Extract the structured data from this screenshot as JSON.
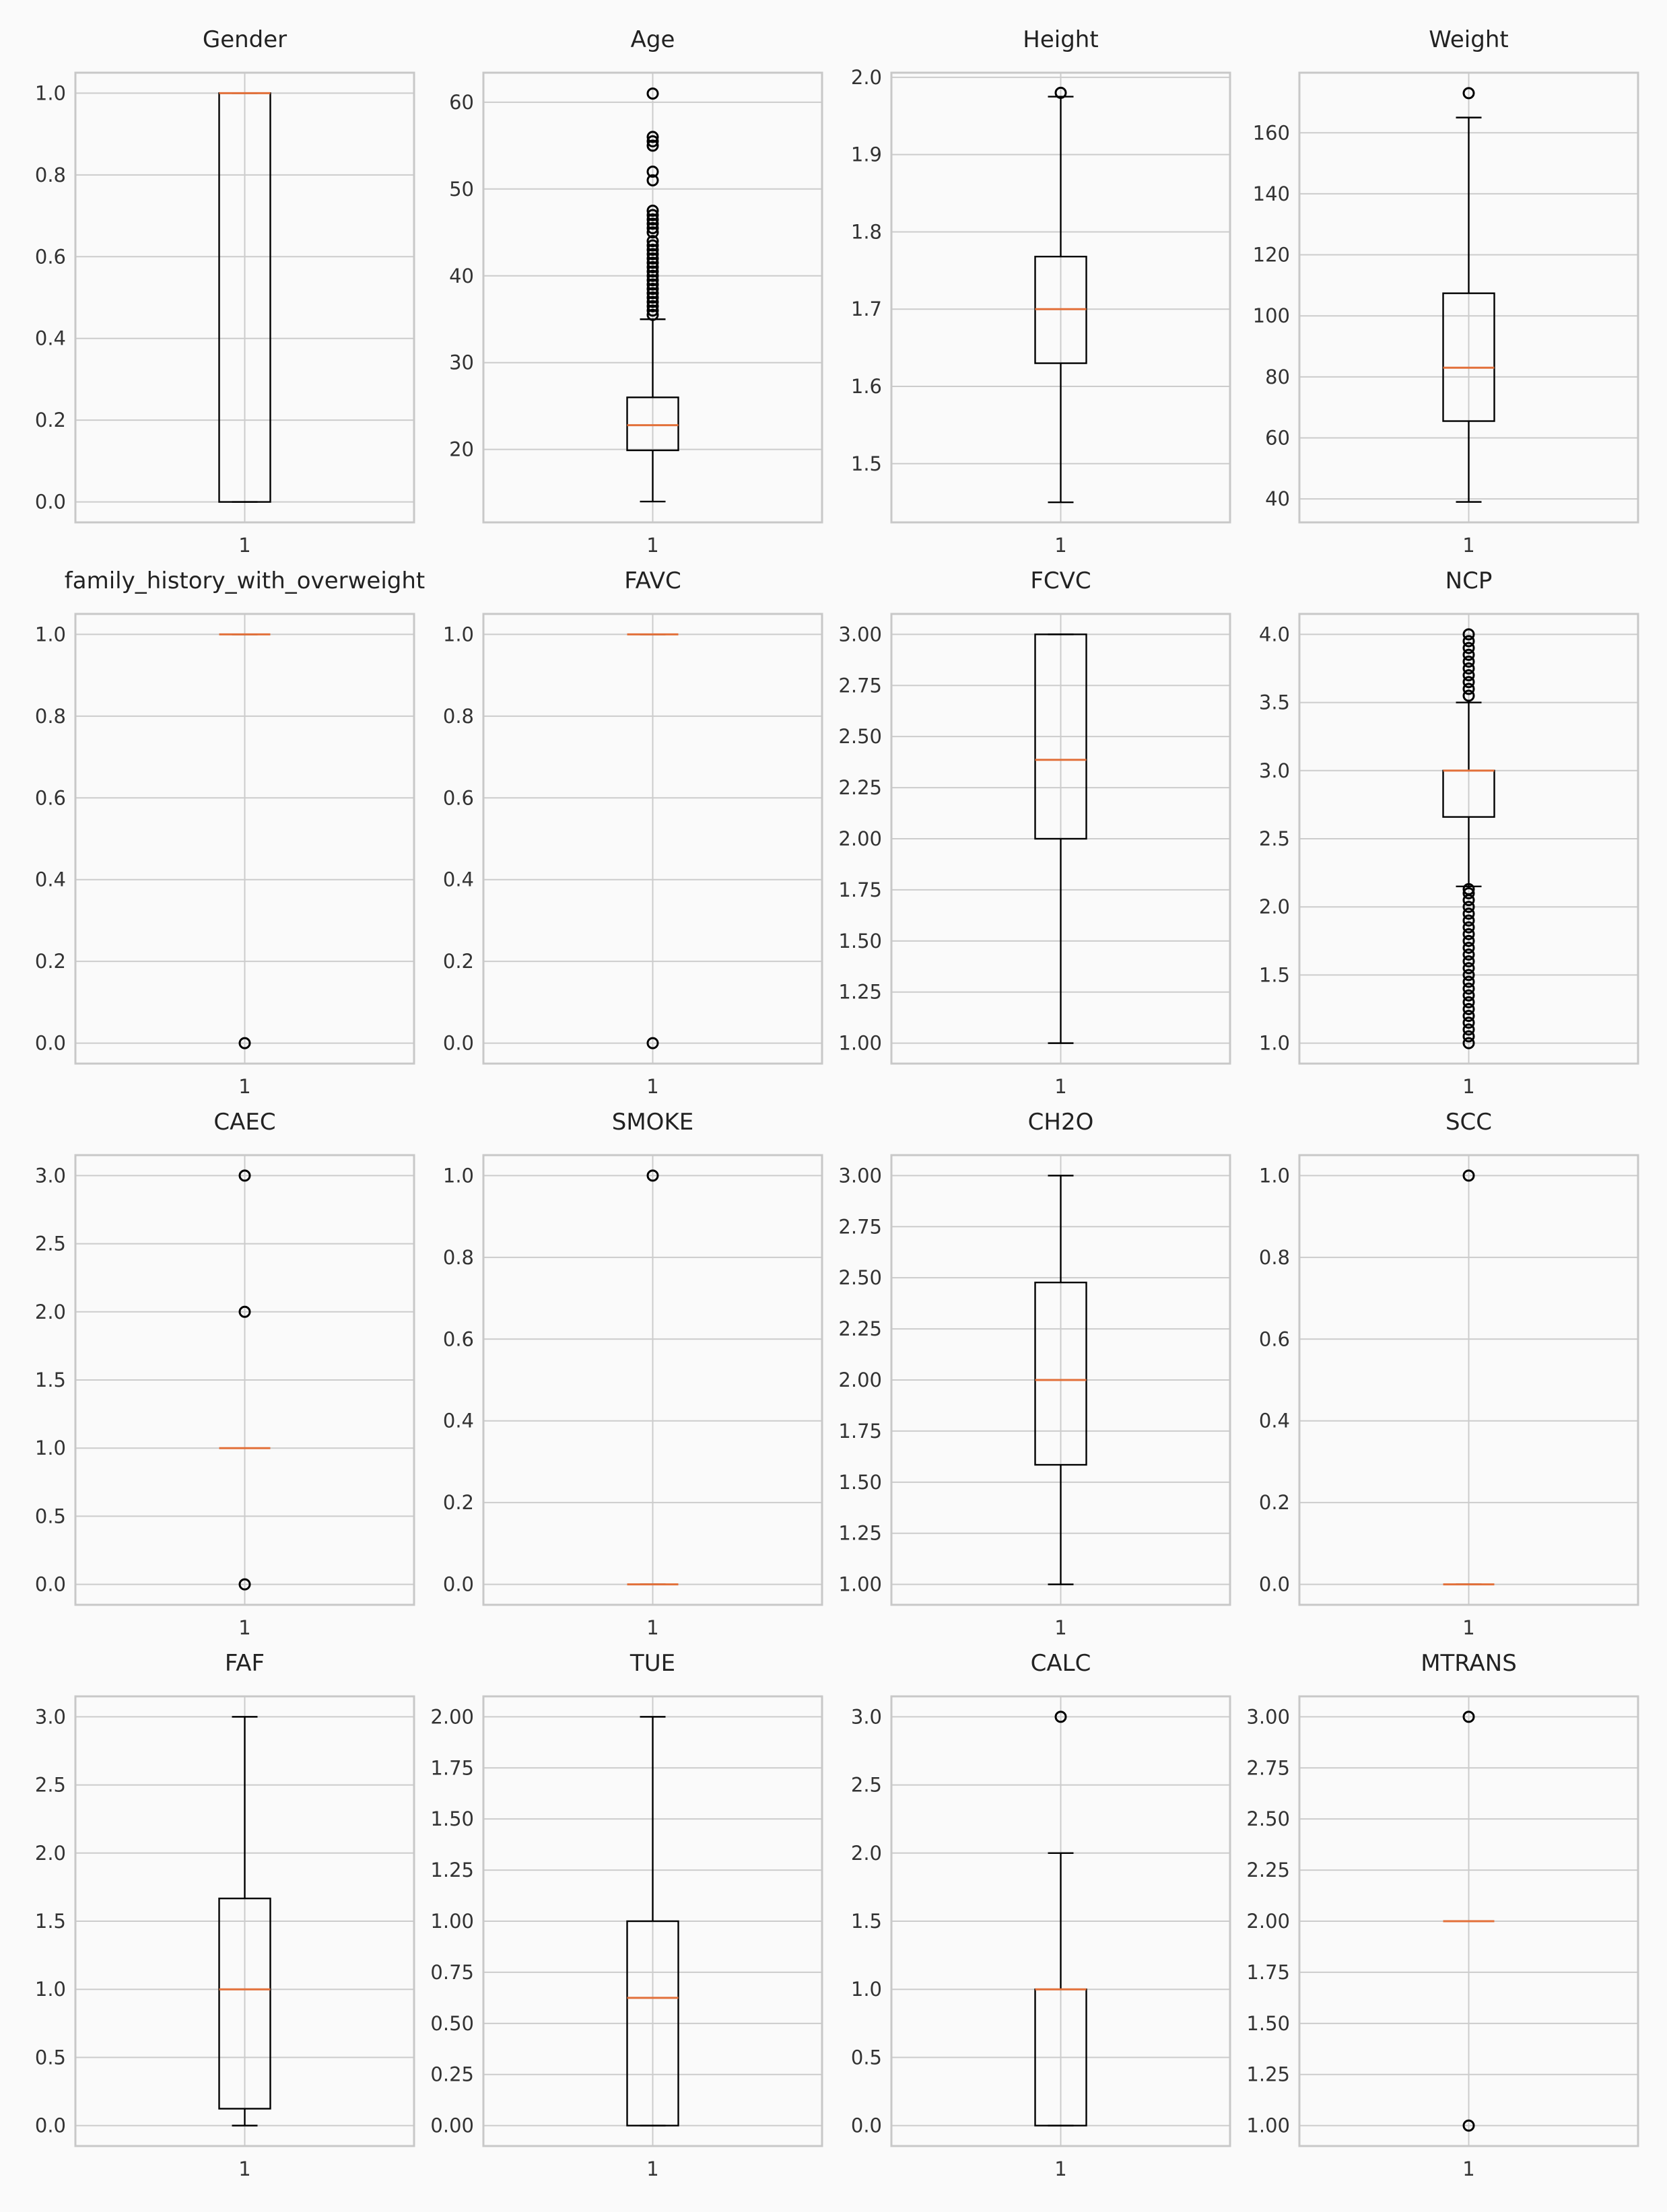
{
  "chart_data": [
    {
      "type": "box",
      "title": "Gender",
      "category": "1",
      "ylim": [
        -0.05,
        1.05
      ],
      "yticks": [
        0.0,
        0.2,
        0.4,
        0.6,
        0.8,
        1.0
      ],
      "tick_labels": [
        "0.0",
        "0.2",
        "0.4",
        "0.6",
        "0.8",
        "1.0"
      ],
      "whislo": 0,
      "q1": 0,
      "med": 1,
      "q3": 1,
      "whishi": 1,
      "fliers": []
    },
    {
      "type": "box",
      "title": "Age",
      "category": "1",
      "ylim": [
        11.6,
        63.4
      ],
      "yticks": [
        20,
        30,
        40,
        50,
        60
      ],
      "tick_labels": [
        "20",
        "30",
        "40",
        "50",
        "60"
      ],
      "whislo": 14,
      "q1": 19.9,
      "med": 22.8,
      "q3": 26,
      "whishi": 35,
      "fliers": [
        35.5,
        36,
        36.5,
        37,
        37.5,
        38,
        38.5,
        39,
        39.5,
        40,
        40.5,
        41,
        41.5,
        42,
        42.5,
        43,
        43.5,
        44,
        45,
        45.5,
        46,
        46.5,
        47,
        47.5,
        51,
        52,
        55,
        55.5,
        56,
        61
      ]
    },
    {
      "type": "box",
      "title": "Height",
      "category": "1",
      "ylim": [
        1.424,
        2.006
      ],
      "yticks": [
        1.5,
        1.6,
        1.7,
        1.8,
        1.9,
        2.0
      ],
      "tick_labels": [
        "1.5",
        "1.6",
        "1.7",
        "1.8",
        "1.9",
        "2.0"
      ],
      "whislo": 1.45,
      "q1": 1.63,
      "med": 1.7,
      "q3": 1.768,
      "whishi": 1.975,
      "fliers": [
        1.98
      ]
    },
    {
      "type": "box",
      "title": "Weight",
      "category": "1",
      "ylim": [
        32.3,
        179.7
      ],
      "yticks": [
        40,
        60,
        80,
        100,
        120,
        140,
        160
      ],
      "tick_labels": [
        "40",
        "60",
        "80",
        "100",
        "120",
        "140",
        "160"
      ],
      "whislo": 39,
      "q1": 65.5,
      "med": 83,
      "q3": 107.4,
      "whishi": 165,
      "fliers": [
        173
      ]
    },
    {
      "type": "box",
      "title": "family_history_with_overweight",
      "category": "1",
      "ylim": [
        -0.05,
        1.05
      ],
      "yticks": [
        0.0,
        0.2,
        0.4,
        0.6,
        0.8,
        1.0
      ],
      "tick_labels": [
        "0.0",
        "0.2",
        "0.4",
        "0.6",
        "0.8",
        "1.0"
      ],
      "whislo": 1,
      "q1": 1,
      "med": 1,
      "q3": 1,
      "whishi": 1,
      "fliers": [
        0
      ]
    },
    {
      "type": "box",
      "title": "FAVC",
      "category": "1",
      "ylim": [
        -0.05,
        1.05
      ],
      "yticks": [
        0.0,
        0.2,
        0.4,
        0.6,
        0.8,
        1.0
      ],
      "tick_labels": [
        "0.0",
        "0.2",
        "0.4",
        "0.6",
        "0.8",
        "1.0"
      ],
      "whislo": 1,
      "q1": 1,
      "med": 1,
      "q3": 1,
      "whishi": 1,
      "fliers": [
        0
      ]
    },
    {
      "type": "box",
      "title": "FCVC",
      "category": "1",
      "ylim": [
        0.9,
        3.1
      ],
      "yticks": [
        1.0,
        1.25,
        1.5,
        1.75,
        2.0,
        2.25,
        2.5,
        2.75,
        3.0
      ],
      "tick_labels": [
        "1.00",
        "1.25",
        "1.50",
        "1.75",
        "2.00",
        "2.25",
        "2.50",
        "2.75",
        "3.00"
      ],
      "whislo": 1,
      "q1": 2,
      "med": 2.386,
      "q3": 3,
      "whishi": 3,
      "fliers": []
    },
    {
      "type": "box",
      "title": "NCP",
      "category": "1",
      "ylim": [
        0.85,
        4.15
      ],
      "yticks": [
        1.0,
        1.5,
        2.0,
        2.5,
        3.0,
        3.5,
        4.0
      ],
      "tick_labels": [
        "1.0",
        "1.5",
        "2.0",
        "2.5",
        "3.0",
        "3.5",
        "4.0"
      ],
      "whislo": 2.15,
      "q1": 2.66,
      "med": 3,
      "q3": 3,
      "whishi": 3.5,
      "fliers": [
        1.0,
        1.05,
        1.1,
        1.15,
        1.2,
        1.25,
        1.3,
        1.35,
        1.4,
        1.45,
        1.5,
        1.55,
        1.6,
        1.65,
        1.7,
        1.75,
        1.8,
        1.85,
        1.9,
        1.95,
        2.0,
        2.05,
        2.1,
        2.13,
        3.55,
        3.6,
        3.65,
        3.7,
        3.75,
        3.8,
        3.85,
        3.9,
        3.95,
        4.0
      ]
    },
    {
      "type": "box",
      "title": "CAEC",
      "category": "1",
      "ylim": [
        -0.15,
        3.15
      ],
      "yticks": [
        0.0,
        0.5,
        1.0,
        1.5,
        2.0,
        2.5,
        3.0
      ],
      "tick_labels": [
        "0.0",
        "0.5",
        "1.0",
        "1.5",
        "2.0",
        "2.5",
        "3.0"
      ],
      "whislo": 1,
      "q1": 1,
      "med": 1,
      "q3": 1,
      "whishi": 1,
      "fliers": [
        0,
        2,
        3
      ]
    },
    {
      "type": "box",
      "title": "SMOKE",
      "category": "1",
      "ylim": [
        -0.05,
        1.05
      ],
      "yticks": [
        0.0,
        0.2,
        0.4,
        0.6,
        0.8,
        1.0
      ],
      "tick_labels": [
        "0.0",
        "0.2",
        "0.4",
        "0.6",
        "0.8",
        "1.0"
      ],
      "whislo": 0,
      "q1": 0,
      "med": 0,
      "q3": 0,
      "whishi": 0,
      "fliers": [
        1
      ]
    },
    {
      "type": "box",
      "title": "CH2O",
      "category": "1",
      "ylim": [
        0.9,
        3.1
      ],
      "yticks": [
        1.0,
        1.25,
        1.5,
        1.75,
        2.0,
        2.25,
        2.5,
        2.75,
        3.0
      ],
      "tick_labels": [
        "1.00",
        "1.25",
        "1.50",
        "1.75",
        "2.00",
        "2.25",
        "2.50",
        "2.75",
        "3.00"
      ],
      "whislo": 1,
      "q1": 1.585,
      "med": 2,
      "q3": 2.477,
      "whishi": 3,
      "fliers": []
    },
    {
      "type": "box",
      "title": "SCC",
      "category": "1",
      "ylim": [
        -0.05,
        1.05
      ],
      "yticks": [
        0.0,
        0.2,
        0.4,
        0.6,
        0.8,
        1.0
      ],
      "tick_labels": [
        "0.0",
        "0.2",
        "0.4",
        "0.6",
        "0.8",
        "1.0"
      ],
      "whislo": 0,
      "q1": 0,
      "med": 0,
      "q3": 0,
      "whishi": 0,
      "fliers": [
        1
      ]
    },
    {
      "type": "box",
      "title": "FAF",
      "category": "1",
      "ylim": [
        -0.15,
        3.15
      ],
      "yticks": [
        0.0,
        0.5,
        1.0,
        1.5,
        2.0,
        2.5,
        3.0
      ],
      "tick_labels": [
        "0.0",
        "0.5",
        "1.0",
        "1.5",
        "2.0",
        "2.5",
        "3.0"
      ],
      "whislo": 0,
      "q1": 0.124,
      "med": 1,
      "q3": 1.667,
      "whishi": 3,
      "fliers": []
    },
    {
      "type": "box",
      "title": "TUE",
      "category": "1",
      "ylim": [
        -0.1,
        2.1
      ],
      "yticks": [
        0.0,
        0.25,
        0.5,
        0.75,
        1.0,
        1.25,
        1.5,
        1.75,
        2.0
      ],
      "tick_labels": [
        "0.00",
        "0.25",
        "0.50",
        "0.75",
        "1.00",
        "1.25",
        "1.50",
        "1.75",
        "2.00"
      ],
      "whislo": 0,
      "q1": 0,
      "med": 0.625,
      "q3": 1,
      "whishi": 2,
      "fliers": []
    },
    {
      "type": "box",
      "title": "CALC",
      "category": "1",
      "ylim": [
        -0.15,
        3.15
      ],
      "yticks": [
        0.0,
        0.5,
        1.0,
        1.5,
        2.0,
        2.5,
        3.0
      ],
      "tick_labels": [
        "0.0",
        "0.5",
        "1.0",
        "1.5",
        "2.0",
        "2.5",
        "3.0"
      ],
      "whislo": 0,
      "q1": 0,
      "med": 1,
      "q3": 1,
      "whishi": 2,
      "fliers": [
        3
      ]
    },
    {
      "type": "box",
      "title": "MTRANS",
      "category": "1",
      "ylim": [
        0.9,
        3.1
      ],
      "yticks": [
        1.0,
        1.25,
        1.5,
        1.75,
        2.0,
        2.25,
        2.5,
        2.75,
        3.0
      ],
      "tick_labels": [
        "1.00",
        "1.25",
        "1.50",
        "1.75",
        "2.00",
        "2.25",
        "2.50",
        "2.75",
        "3.00"
      ],
      "whislo": 2,
      "q1": 2,
      "med": 2,
      "q3": 2,
      "whishi": 2,
      "fliers": [
        1,
        3
      ]
    }
  ]
}
